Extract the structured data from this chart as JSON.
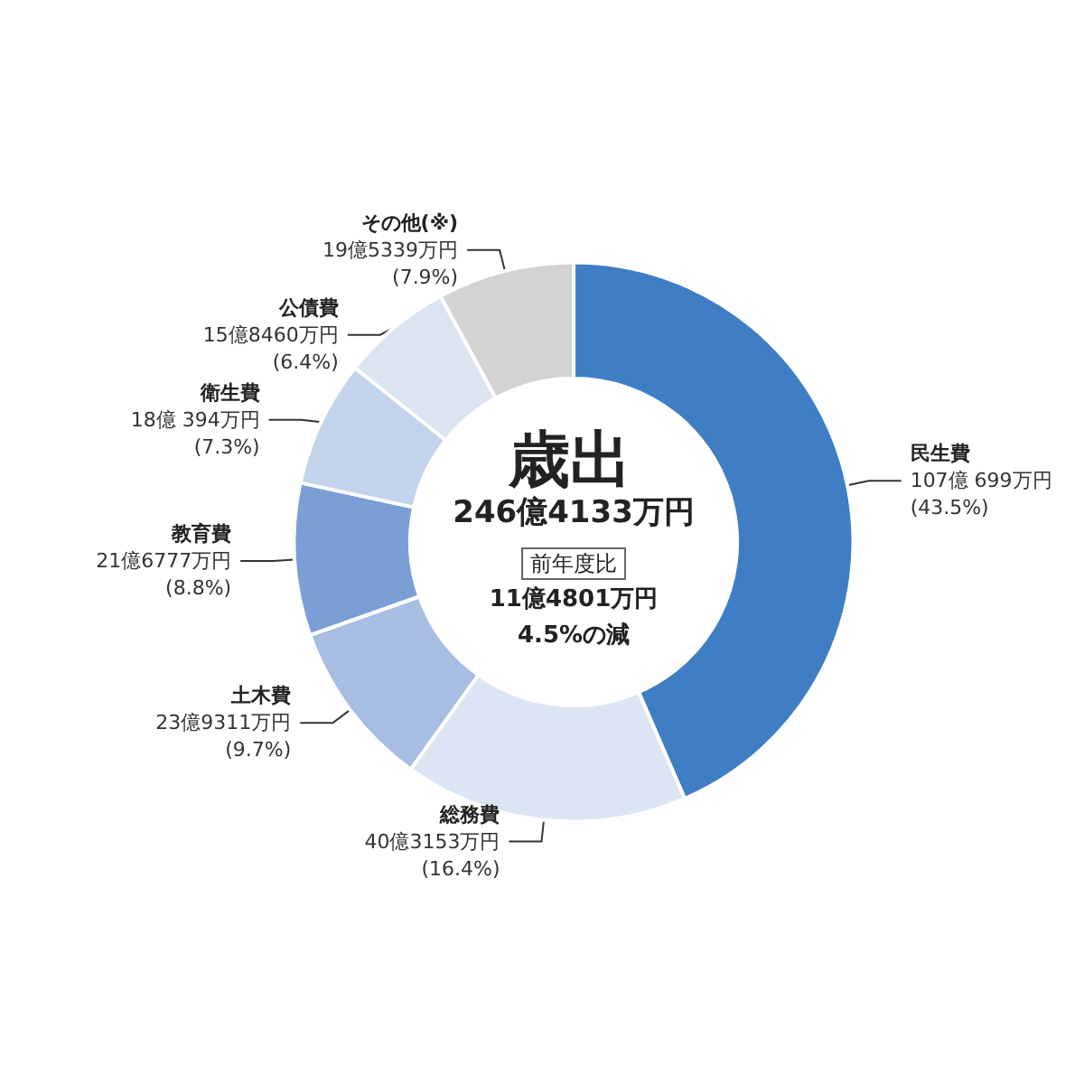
{
  "chart_data": {
    "type": "donut",
    "title": "歳出",
    "subtitle": "246億4133万円",
    "annotations": [
      "前年度比",
      "11億4801万円",
      "4.5%の減"
    ],
    "categories": [
      "民生費",
      "総務費",
      "土木費",
      "教育費",
      "衛生費",
      "公債費",
      "その他(※)"
    ],
    "values": [
      43.5,
      16.4,
      9.7,
      8.8,
      7.3,
      6.4,
      7.9
    ],
    "value_labels": [
      "107億 699万円\n(43.5%)",
      "40億3153万円\n(16.4%)",
      "23億9311万円\n(9.7%)",
      "21億6777万円\n(8.8%)",
      "18億 394万円\n(7.3%)",
      "15億8460万円\n(6.4%)",
      "19億5339万円\n(7.9%)"
    ],
    "colors": [
      "#3f7ec4",
      "#dce5f3",
      "#a7bde2",
      "#7a9fd5",
      "#c4d3ec",
      "#dce4f2",
      "#d3d3d3"
    ],
    "legend": false
  }
}
